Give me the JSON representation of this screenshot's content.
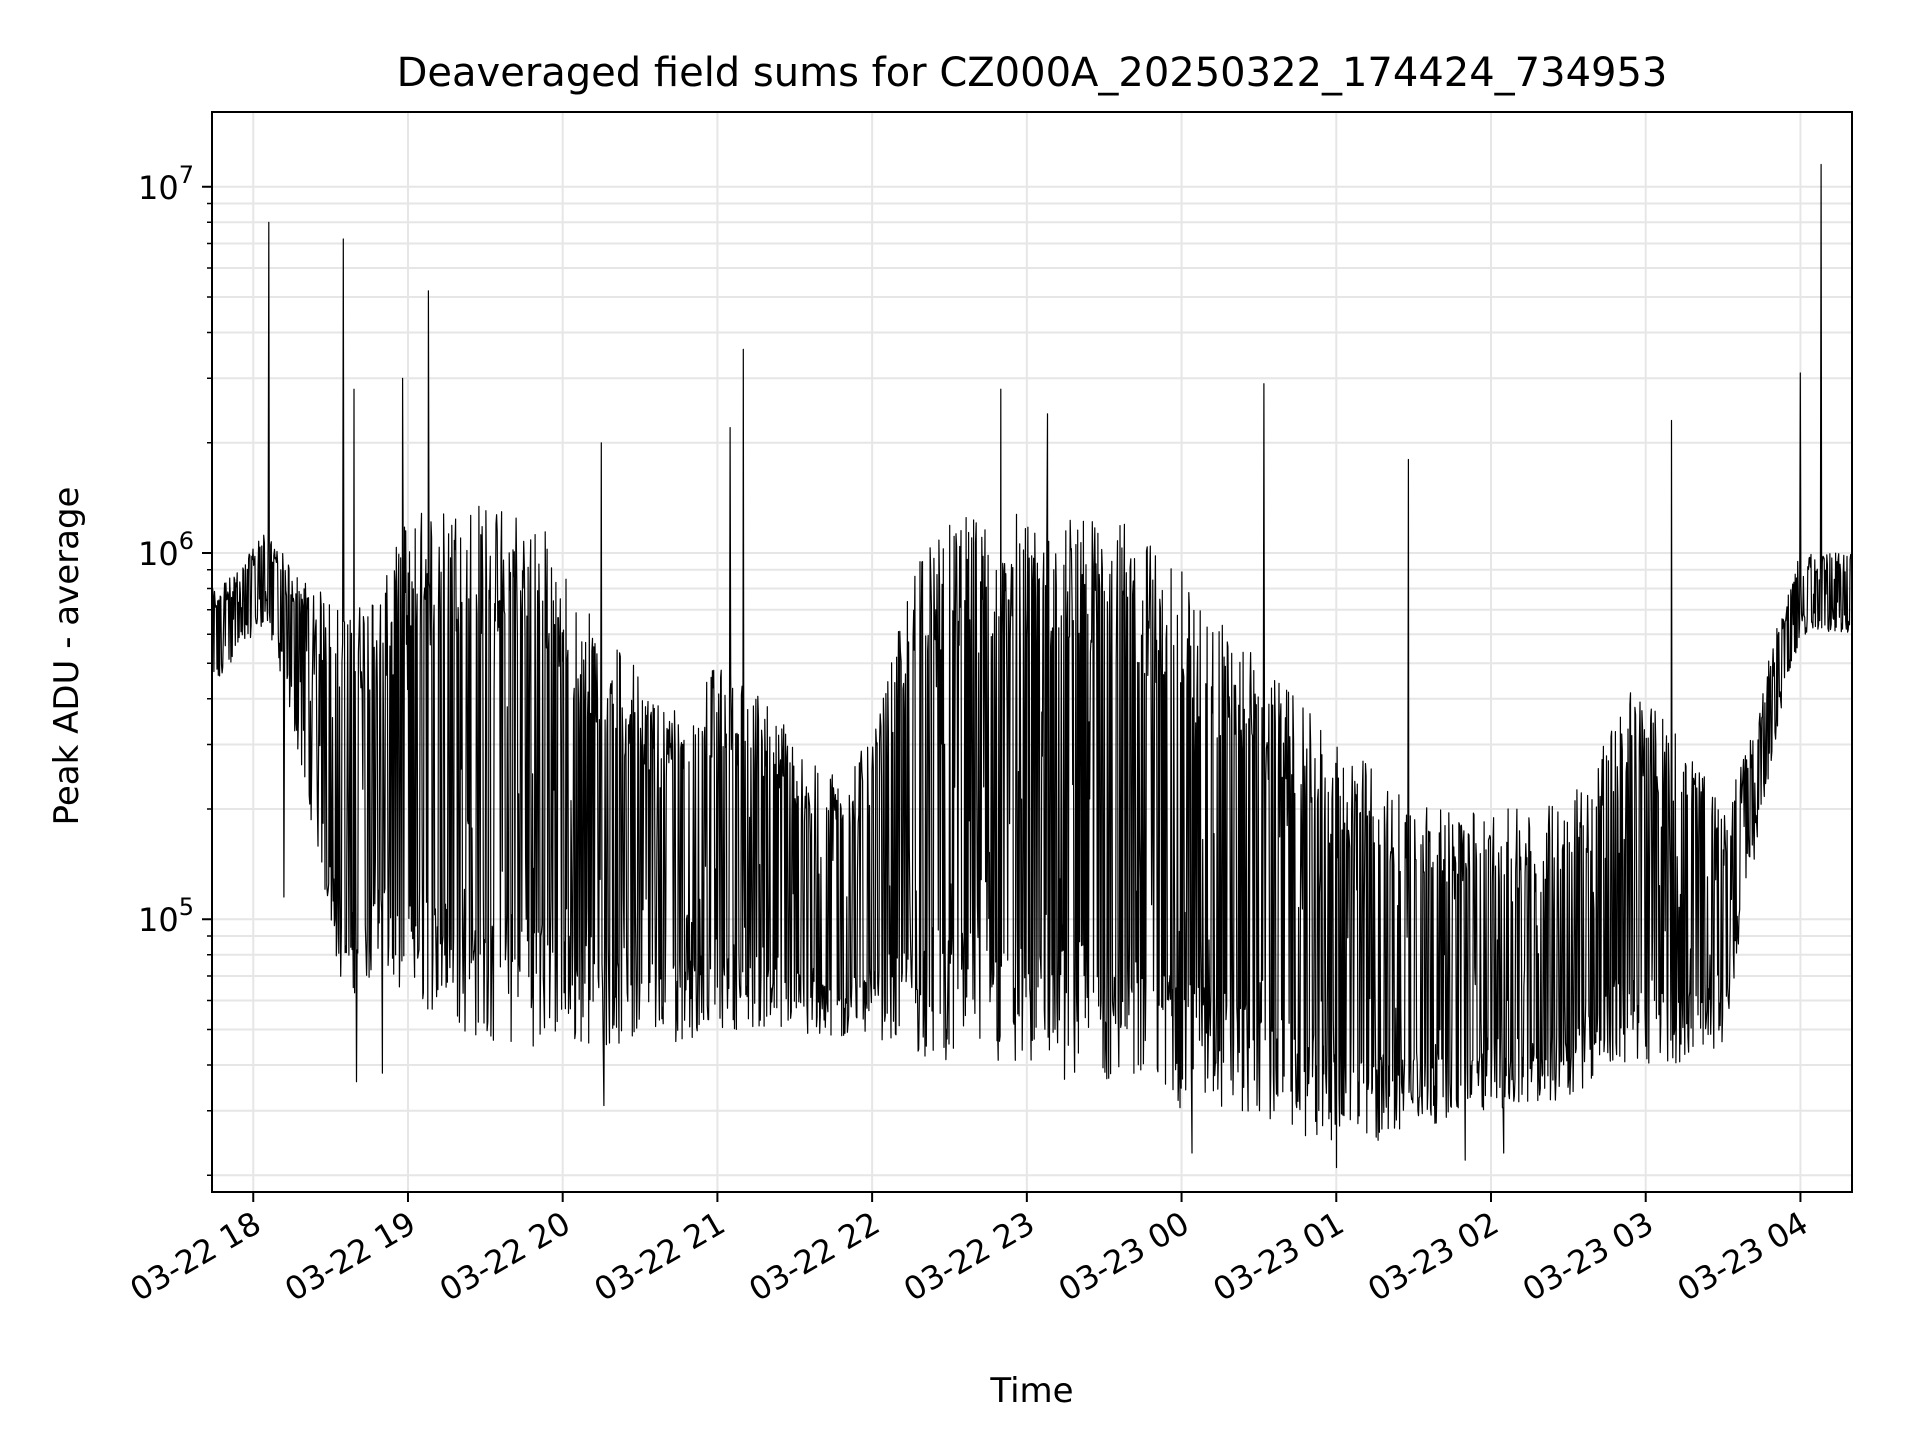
{
  "chart_data": {
    "type": "line",
    "title": "Deaveraged field sums for CZ000A_20250322_174424_734953",
    "xlabel": "Time",
    "ylabel": "Peak ADU - average",
    "yscale": "log",
    "grid": true,
    "line_color": "#000000",
    "grid_color": "#e6e6e6",
    "xlim": [
      "2025-03-22 17:44",
      "2025-03-23 04:20"
    ],
    "ylim": [
      18000,
      16000000
    ],
    "x_ticks": [
      {
        "value": "2025-03-22 18:00",
        "label": "03-22 18"
      },
      {
        "value": "2025-03-22 19:00",
        "label": "03-22 19"
      },
      {
        "value": "2025-03-22 20:00",
        "label": "03-22 20"
      },
      {
        "value": "2025-03-22 21:00",
        "label": "03-22 21"
      },
      {
        "value": "2025-03-22 22:00",
        "label": "03-22 22"
      },
      {
        "value": "2025-03-22 23:00",
        "label": "03-22 23"
      },
      {
        "value": "2025-03-23 00:00",
        "label": "03-23 00"
      },
      {
        "value": "2025-03-23 01:00",
        "label": "03-23 01"
      },
      {
        "value": "2025-03-23 02:00",
        "label": "03-23 02"
      },
      {
        "value": "2025-03-23 03:00",
        "label": "03-23 03"
      },
      {
        "value": "2025-03-23 04:00",
        "label": "03-23 04"
      }
    ],
    "y_ticks": [
      {
        "value": 100000,
        "base": "10",
        "exp": "5"
      },
      {
        "value": 1000000,
        "base": "10",
        "exp": "6"
      },
      {
        "value": 10000000,
        "base": "10",
        "exp": "7"
      }
    ],
    "series": [
      {
        "envelope": [
          {
            "x": "2025-03-22 17:44",
            "low": 400000,
            "high": 800000
          },
          {
            "x": "2025-03-22 17:55",
            "low": 550000,
            "high": 900000
          },
          {
            "x": "2025-03-22 18:05",
            "low": 650000,
            "high": 1200000
          },
          {
            "x": "2025-03-22 18:15",
            "low": 350000,
            "high": 900000
          },
          {
            "x": "2025-03-22 18:25",
            "low": 150000,
            "high": 800000
          },
          {
            "x": "2025-03-22 18:35",
            "low": 60000,
            "high": 700000
          },
          {
            "x": "2025-03-22 18:50",
            "low": 70000,
            "high": 800000
          },
          {
            "x": "2025-03-22 19:00",
            "low": 60000,
            "high": 1300000
          },
          {
            "x": "2025-03-22 19:30",
            "low": 45000,
            "high": 1400000
          },
          {
            "x": "2025-03-22 19:50",
            "low": 45000,
            "high": 1300000
          },
          {
            "x": "2025-03-22 20:10",
            "low": 45000,
            "high": 700000
          },
          {
            "x": "2025-03-22 20:40",
            "low": 45000,
            "high": 400000
          },
          {
            "x": "2025-03-22 21:00",
            "low": 50000,
            "high": 500000
          },
          {
            "x": "2025-03-22 21:20",
            "low": 50000,
            "high": 400000
          },
          {
            "x": "2025-03-22 21:40",
            "low": 45000,
            "high": 250000
          },
          {
            "x": "2025-03-22 22:00",
            "low": 48000,
            "high": 300000
          },
          {
            "x": "2025-03-22 22:20",
            "low": 42000,
            "high": 1200000
          },
          {
            "x": "2025-03-22 22:50",
            "low": 38000,
            "high": 1300000
          },
          {
            "x": "2025-03-22 23:10",
            "low": 36000,
            "high": 1300000
          },
          {
            "x": "2025-03-22 23:40",
            "low": 36000,
            "high": 1200000
          },
          {
            "x": "2025-03-23 00:00",
            "low": 30000,
            "high": 900000
          },
          {
            "x": "2025-03-23 00:20",
            "low": 30000,
            "high": 600000
          },
          {
            "x": "2025-03-23 00:45",
            "low": 26000,
            "high": 400000
          },
          {
            "x": "2025-03-23 01:00",
            "low": 24000,
            "high": 300000
          },
          {
            "x": "2025-03-23 01:20",
            "low": 24000,
            "high": 250000
          },
          {
            "x": "2025-03-23 01:40",
            "low": 28000,
            "high": 200000
          },
          {
            "x": "2025-03-23 02:00",
            "low": 30000,
            "high": 200000
          },
          {
            "x": "2025-03-23 02:20",
            "low": 30000,
            "high": 200000
          },
          {
            "x": "2025-03-23 02:40",
            "low": 36000,
            "high": 250000
          },
          {
            "x": "2025-03-23 02:50",
            "low": 40000,
            "high": 450000
          },
          {
            "x": "2025-03-23 03:10",
            "low": 40000,
            "high": 350000
          },
          {
            "x": "2025-03-23 03:30",
            "low": 45000,
            "high": 200000
          },
          {
            "x": "2025-03-23 03:40",
            "low": 120000,
            "high": 300000
          },
          {
            "x": "2025-03-23 03:50",
            "low": 300000,
            "high": 600000
          },
          {
            "x": "2025-03-23 04:00",
            "low": 600000,
            "high": 1000000
          },
          {
            "x": "2025-03-23 04:20",
            "low": 600000,
            "high": 1000000
          }
        ],
        "spikes": [
          {
            "x": "2025-03-22 18:06",
            "value": 8000000
          },
          {
            "x": "2025-03-22 18:35",
            "value": 7200000
          },
          {
            "x": "2025-03-22 19:08",
            "value": 5200000
          },
          {
            "x": "2025-03-22 18:39",
            "value": 2800000
          },
          {
            "x": "2025-03-22 18:58",
            "value": 3000000
          },
          {
            "x": "2025-03-22 21:10",
            "value": 3600000
          },
          {
            "x": "2025-03-22 21:05",
            "value": 2200000
          },
          {
            "x": "2025-03-22 22:50",
            "value": 2800000
          },
          {
            "x": "2025-03-22 23:08",
            "value": 2400000
          },
          {
            "x": "2025-03-23 00:32",
            "value": 2900000
          },
          {
            "x": "2025-03-23 01:28",
            "value": 1800000
          },
          {
            "x": "2025-03-23 03:10",
            "value": 2300000
          },
          {
            "x": "2025-03-23 04:08",
            "value": 11500000
          },
          {
            "x": "2025-03-23 04:00",
            "value": 3100000
          },
          {
            "x": "2025-03-22 20:15",
            "value": 2000000
          }
        ],
        "dips": [
          {
            "x": "2025-03-22 18:12",
            "value": 115000
          },
          {
            "x": "2025-03-22 18:40",
            "value": 36000
          },
          {
            "x": "2025-03-22 18:50",
            "value": 38000
          },
          {
            "x": "2025-03-22 20:16",
            "value": 31000
          },
          {
            "x": "2025-03-23 00:04",
            "value": 23000
          },
          {
            "x": "2025-03-23 01:00",
            "value": 21000
          },
          {
            "x": "2025-03-23 01:50",
            "value": 22000
          },
          {
            "x": "2025-03-23 02:05",
            "value": 23000
          }
        ]
      }
    ]
  }
}
